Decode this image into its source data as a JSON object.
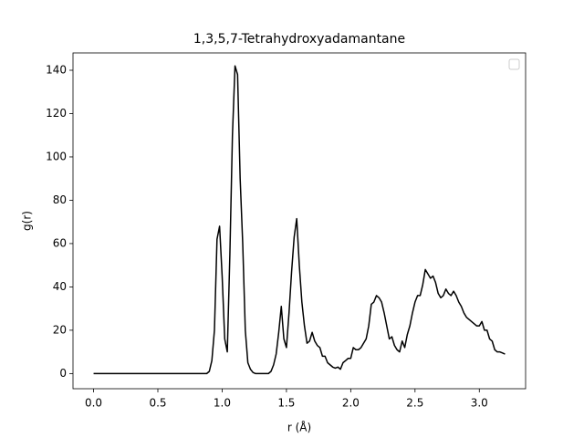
{
  "chart_data": {
    "type": "line",
    "title": "1,3,5,7-Tetrahydroxyadamantane",
    "xlabel": "r (Å)",
    "ylabel": "g(r)",
    "x": [
      0,
      0.88,
      0.9,
      0.92,
      0.94,
      0.96,
      0.98,
      1.0,
      1.02,
      1.04,
      1.06,
      1.08,
      1.1,
      1.12,
      1.14,
      1.16,
      1.18,
      1.2,
      1.22,
      1.24,
      1.26,
      1.36,
      1.38,
      1.4,
      1.42,
      1.44,
      1.46,
      1.48,
      1.5,
      1.52,
      1.54,
      1.56,
      1.58,
      1.6,
      1.62,
      1.64,
      1.66,
      1.68,
      1.7,
      1.72,
      1.74,
      1.76,
      1.78,
      1.8,
      1.82,
      1.84,
      1.86,
      1.88,
      1.9,
      1.92,
      1.94,
      1.96,
      1.98,
      2.0,
      2.02,
      2.04,
      2.06,
      2.08,
      2.1,
      2.12,
      2.14,
      2.16,
      2.18,
      2.2,
      2.22,
      2.24,
      2.26,
      2.28,
      2.3,
      2.32,
      2.34,
      2.36,
      2.38,
      2.4,
      2.42,
      2.44,
      2.46,
      2.48,
      2.5,
      2.52,
      2.54,
      2.56,
      2.58,
      2.6,
      2.62,
      2.64,
      2.66,
      2.68,
      2.7,
      2.72,
      2.74,
      2.76,
      2.78,
      2.8,
      2.82,
      2.84,
      2.86,
      2.88,
      2.9,
      2.92,
      2.94,
      2.96,
      2.98,
      3.0,
      3.02,
      3.04,
      3.06,
      3.08,
      3.1,
      3.12,
      3.14,
      3.16,
      3.18,
      3.2
    ],
    "series": [
      {
        "color": "#000000",
        "values": [
          0,
          0,
          1,
          6,
          20,
          62,
          68,
          45,
          16,
          10,
          55,
          110,
          142,
          138,
          90,
          60,
          20,
          5,
          2,
          0.5,
          0,
          0,
          1,
          4,
          9,
          19,
          31,
          16,
          12,
          28,
          47,
          63,
          71.5,
          50,
          33,
          22,
          14,
          15,
          19,
          15,
          13,
          12,
          8,
          8,
          5,
          4,
          3,
          2.5,
          3,
          2,
          5,
          6,
          7,
          7,
          12,
          11,
          11,
          12,
          14,
          16,
          22,
          32,
          33,
          36,
          35,
          33,
          28,
          22,
          16,
          17,
          13,
          11,
          10,
          15,
          12,
          18,
          22,
          28,
          33,
          36,
          36,
          41,
          48,
          46,
          44,
          45,
          42,
          37,
          35,
          36,
          39,
          37,
          36,
          38,
          36,
          33,
          31,
          28,
          26,
          25,
          24,
          23,
          22,
          22,
          24,
          20,
          20,
          16,
          15,
          11,
          10,
          10,
          9.5,
          9
        ]
      }
    ],
    "xlim": [
      -0.16,
      3.36
    ],
    "ylim": [
      -7,
      148
    ],
    "xticks": [
      {
        "value": 0,
        "label": "0.0"
      },
      {
        "value": 0.5,
        "label": "0.5"
      },
      {
        "value": 1,
        "label": "1.0"
      },
      {
        "value": 1.5,
        "label": "1.5"
      },
      {
        "value": 2,
        "label": "2.0"
      },
      {
        "value": 2.5,
        "label": "2.5"
      },
      {
        "value": 3,
        "label": "3.0"
      }
    ],
    "yticks": [
      0,
      20,
      40,
      60,
      80,
      100,
      120,
      140
    ],
    "grid": false
  }
}
